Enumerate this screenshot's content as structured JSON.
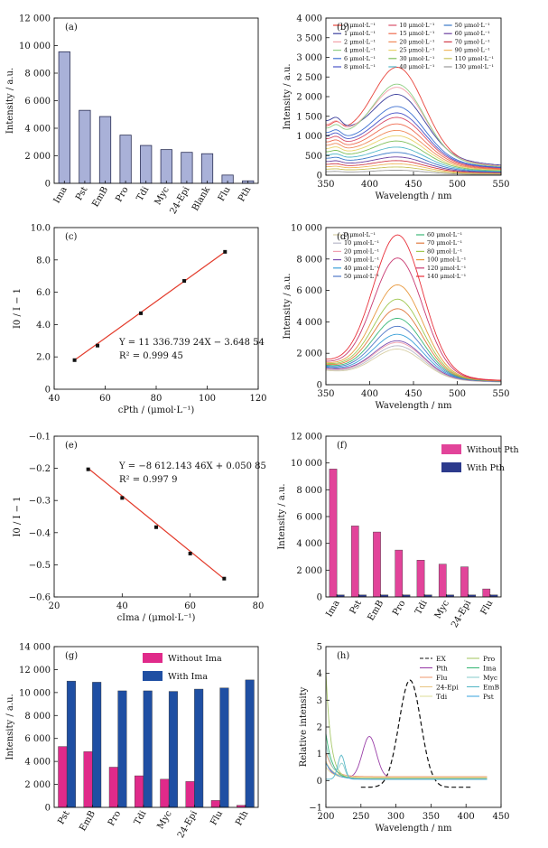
{
  "chart_data": [
    {
      "id": "a",
      "type": "bar",
      "panel_label": "(a)",
      "ylabel": "Intensity / a.u.",
      "xlabel": "",
      "ylim": [
        0,
        12000
      ],
      "yticks": [
        "0",
        "2 000",
        "4 000",
        "6 000",
        "8 000",
        "10 000",
        "12 000"
      ],
      "categories": [
        "Ima",
        "Pst",
        "EmB",
        "Pro",
        "Tdi",
        "Myc",
        "24-Epi",
        "Blank",
        "Flu",
        "Pth"
      ],
      "values": [
        9550,
        5300,
        4850,
        3500,
        2750,
        2450,
        2250,
        2150,
        600,
        180
      ],
      "colors": {
        "bar": "#a9b1d8",
        "edge": "#2b2f55"
      }
    },
    {
      "id": "b",
      "type": "line",
      "panel_label": "(b)",
      "ylabel": "Intensity / a.u.",
      "xlabel": "Wavelength / nm",
      "xlim": [
        350,
        550
      ],
      "ylim": [
        0,
        4000
      ],
      "xticks": [
        "350",
        "400",
        "450",
        "500",
        "550"
      ],
      "yticks": [
        "0",
        "500",
        "1 000",
        "1 500",
        "2 000",
        "2 500",
        "3 000",
        "3 500",
        "4 000"
      ],
      "series": [
        {
          "name": "0 μmol·L⁻¹",
          "color": "#e8453c",
          "peak": 2520,
          "base": 1200
        },
        {
          "name": "1 μmol·L⁻¹",
          "color": "#3b3f9c",
          "peak": 1800,
          "base": 1350
        },
        {
          "name": "2 μmol·L⁻¹",
          "color": "#f3a0a8",
          "peak": 2000,
          "base": 1250
        },
        {
          "name": "4 μmol·L⁻¹",
          "color": "#8fce84",
          "peak": 2100,
          "base": 1150
        },
        {
          "name": "6 μmol·L⁻¹",
          "color": "#3c6fd1",
          "peak": 1550,
          "base": 1050
        },
        {
          "name": "8 μmol·L⁻¹",
          "color": "#4a55c8",
          "peak": 1400,
          "base": 980
        },
        {
          "name": "10 μmol·L⁻¹",
          "color": "#d94f6b",
          "peak": 1300,
          "base": 900
        },
        {
          "name": "15 μmol·L⁻¹",
          "color": "#ef6b4e",
          "peak": 1150,
          "base": 820
        },
        {
          "name": "20 μmol·L⁻¹",
          "color": "#f08a5a",
          "peak": 1000,
          "base": 740
        },
        {
          "name": "25 μmol·L⁻¹",
          "color": "#e8d36a",
          "peak": 880,
          "base": 660
        },
        {
          "name": "30 μmol·L⁻¹",
          "color": "#7fbf5a",
          "peak": 760,
          "base": 580
        },
        {
          "name": "40 μmol·L⁻¹",
          "color": "#52b8c9",
          "peak": 620,
          "base": 500
        },
        {
          "name": "50 μmol·L⁻¹",
          "color": "#3a78c8",
          "peak": 500,
          "base": 420
        },
        {
          "name": "60 μmol·L⁻¹",
          "color": "#6a3fa0",
          "peak": 400,
          "base": 340
        },
        {
          "name": "70 μmol·L⁻¹",
          "color": "#d23c4a",
          "peak": 320,
          "base": 270
        },
        {
          "name": "90 μmol·L⁻¹",
          "color": "#f0b85e",
          "peak": 250,
          "base": 210
        },
        {
          "name": "110 μmol·L⁻¹",
          "color": "#c9c45e",
          "peak": 180,
          "base": 150
        },
        {
          "name": "130 μmol·L⁻¹",
          "color": "#9a9a9a",
          "peak": 110,
          "base": 90
        }
      ]
    },
    {
      "id": "c",
      "type": "scatter",
      "panel_label": "(c)",
      "ylabel": "I0 / I − 1",
      "xlabel": "cPth / (μmol·L⁻¹)",
      "xlim": [
        40,
        120
      ],
      "ylim": [
        0,
        10
      ],
      "xticks": [
        "40",
        "60",
        "80",
        "100",
        "120"
      ],
      "yticks": [
        "0",
        "2.0",
        "4.0",
        "6.0",
        "8.0",
        "10.0"
      ],
      "x": [
        48,
        57,
        74,
        91,
        107
      ],
      "y": [
        1.8,
        2.7,
        4.7,
        6.7,
        8.5
      ],
      "fit": {
        "x": [
          48,
          107
        ],
        "y": [
          1.8,
          8.5
        ]
      },
      "equation": "Y = 11 336.739 24X − 3.648 54",
      "r2": "R² = 0.999 45",
      "colors": {
        "fit": "#e33b2b",
        "point": "#111111"
      }
    },
    {
      "id": "d",
      "type": "line",
      "panel_label": "(d)",
      "ylabel": "Intensity / a.u.",
      "xlabel": "Wavelength / nm",
      "xlim": [
        350,
        550
      ],
      "ylim": [
        0,
        10000
      ],
      "xticks": [
        "350",
        "400",
        "450",
        "500",
        "550"
      ],
      "yticks": [
        "0",
        "2 000",
        "4 000",
        "6 000",
        "8 000",
        "10 000"
      ],
      "series": [
        {
          "name": "0 μmol·L⁻¹",
          "color": "#d8d0a8",
          "peak": 2100,
          "base": 900
        },
        {
          "name": "10 μmol·L⁻¹",
          "color": "#b8b8c8",
          "peak": 2300,
          "base": 950
        },
        {
          "name": "20 μmol·L⁻¹",
          "color": "#f0a0b0",
          "peak": 2500,
          "base": 1000
        },
        {
          "name": "30 μmol·L⁻¹",
          "color": "#7a4fb0",
          "peak": 2600,
          "base": 1050
        },
        {
          "name": "40 μmol·L⁻¹",
          "color": "#3aa0d8",
          "peak": 3000,
          "base": 1100
        },
        {
          "name": "50 μmol·L⁻¹",
          "color": "#5078c8",
          "peak": 3500,
          "base": 1150
        },
        {
          "name": "60 μmol·L⁻¹",
          "color": "#3cb878",
          "peak": 4000,
          "base": 1200
        },
        {
          "name": "70 μmol·L⁻¹",
          "color": "#e07a40",
          "peak": 4600,
          "base": 1250
        },
        {
          "name": "80 μmol·L⁻¹",
          "color": "#a0c850",
          "peak": 5200,
          "base": 1300
        },
        {
          "name": "100 μmol·L⁻¹",
          "color": "#e89a40",
          "peak": 6100,
          "base": 1350
        },
        {
          "name": "120 μmol·L⁻¹",
          "color": "#c83870",
          "peak": 7800,
          "base": 1400
        },
        {
          "name": "140 μmol·L⁻¹",
          "color": "#e8303a",
          "peak": 9250,
          "base": 1500
        }
      ]
    },
    {
      "id": "e",
      "type": "scatter",
      "panel_label": "(e)",
      "ylabel": "I0 / I − 1",
      "xlabel": "cIma / (μmol·L⁻¹)",
      "xlim": [
        20,
        80
      ],
      "ylim": [
        -0.6,
        -0.1
      ],
      "xticks": [
        "20",
        "40",
        "60",
        "80"
      ],
      "yticks": [
        "−0.6",
        "−0.5",
        "−0.4",
        "−0.3",
        "−0.2",
        "−0.1"
      ],
      "x": [
        30,
        40,
        50,
        60,
        70
      ],
      "y": [
        -0.203,
        -0.292,
        -0.383,
        -0.465,
        -0.543
      ],
      "fit": {
        "x": [
          30,
          70
        ],
        "y": [
          -0.2,
          -0.544
        ]
      },
      "equation": "Y = −8 612.143 46X + 0.050 85",
      "r2": "R² = 0.997 9",
      "colors": {
        "fit": "#e33b2b",
        "point": "#111111"
      }
    },
    {
      "id": "f",
      "type": "bar",
      "panel_label": "(f)",
      "ylabel": "Intensity / a.u.",
      "xlabel": "",
      "ylim": [
        0,
        12000
      ],
      "yticks": [
        "0",
        "2 000",
        "4 000",
        "6 000",
        "8 000",
        "10 000",
        "12 000"
      ],
      "categories": [
        "Ima",
        "Pst",
        "EmB",
        "Pro",
        "Tdi",
        "Myc",
        "24-Epi",
        "Flu"
      ],
      "series": [
        {
          "name": "Without Pth",
          "color": "#e2449a",
          "values": [
            9550,
            5300,
            4850,
            3500,
            2750,
            2450,
            2250,
            600
          ]
        },
        {
          "name": "With Pth",
          "color": "#2c3a8c",
          "values": [
            150,
            150,
            150,
            150,
            150,
            150,
            150,
            150
          ]
        }
      ]
    },
    {
      "id": "g",
      "type": "bar",
      "panel_label": "(g)",
      "ylabel": "Intensity / a.u.",
      "xlabel": "",
      "ylim": [
        0,
        14000
      ],
      "yticks": [
        "0",
        "2 000",
        "4 000",
        "6 000",
        "8 000",
        "10 000",
        "12 000",
        "14 000"
      ],
      "categories": [
        "Pst",
        "EmB",
        "Pro",
        "Tdi",
        "Myc",
        "24-Epi",
        "Flu",
        "Pth"
      ],
      "series": [
        {
          "name": "Without Ima",
          "color": "#e02a8a",
          "values": [
            5300,
            4850,
            3500,
            2750,
            2450,
            2250,
            600,
            180
          ]
        },
        {
          "name": "With Ima",
          "color": "#1f4fa3",
          "values": [
            11000,
            10900,
            10150,
            10150,
            10100,
            10300,
            10400,
            11100
          ]
        }
      ]
    },
    {
      "id": "h",
      "type": "line",
      "panel_label": "(h)",
      "ylabel": "Relative intensity",
      "xlabel": "Wavelength / nm",
      "xlim": [
        200,
        450
      ],
      "ylim": [
        -1,
        5
      ],
      "xticks": [
        "200",
        "250",
        "300",
        "350",
        "400",
        "450"
      ],
      "yticks": [
        "−1",
        "0",
        "1",
        "2",
        "3",
        "4",
        "5"
      ],
      "series": [
        {
          "name": "EX",
          "color": "#111111",
          "dash": true
        },
        {
          "name": "Pth",
          "color": "#9a3fa8"
        },
        {
          "name": "Flu",
          "color": "#f0a07a"
        },
        {
          "name": "24-Epi",
          "color": "#e8c888"
        },
        {
          "name": "Tdi",
          "color": "#e0e0a0"
        },
        {
          "name": "Pro",
          "color": "#a8c86a"
        },
        {
          "name": "Ima",
          "color": "#3cb878"
        },
        {
          "name": "Myc",
          "color": "#90cfcf"
        },
        {
          "name": "EmB",
          "color": "#5ab8c8"
        },
        {
          "name": "Pst",
          "color": "#48a8e0"
        }
      ]
    }
  ]
}
